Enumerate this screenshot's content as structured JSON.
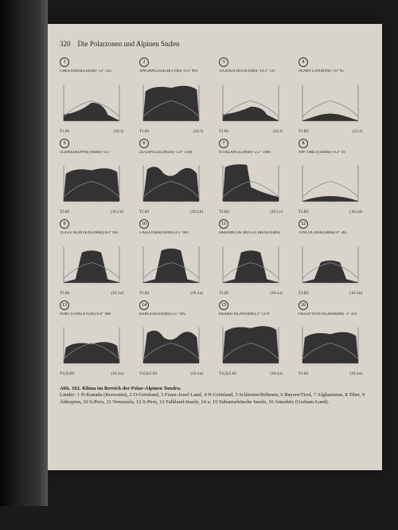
{
  "page": {
    "number": "320",
    "title": "Die Polarzonen und Alpinen Stufen"
  },
  "figure_caption": {
    "label": "Abb. 162.",
    "title": "Klima im Bereich der Polar-Alpinen Tundra.",
    "legend": "Länder: 1 N-Kanada (Keewatin), 2 O-Grönland, 3 Franz-Josef-Land, 4 N-Grönland, 5 Schlesien/Böhmen, 6 Bayern/Tirol, 7 Afghanistan, 8 Tibet, 9 Äthiopien, 10 S-Peru, 11 Venezuela, 12 S-Peru, 13 Falkland-Inseln, 14 u. 15 Subantarktische Inseln, 16 Antarktis (Graham-Land)."
  },
  "colors": {
    "fill_dark": "#333333",
    "hatch": "#555555",
    "line": "#222222",
    "accent": "#888888",
    "bg": "#d8d4cc",
    "axis": "#444444"
  },
  "panels": [
    {
      "n": "1",
      "title": "CHESTERFIELD(6m) -13° 235",
      "sub": "(-26)",
      "tcode": "T1.H1",
      "rcode": "(16.1)",
      "shape": "lowbump",
      "h": 0.45
    },
    {
      "n": "2",
      "title": "ANGMAGSSALIK (19m) -0.3° 903",
      "sub": "",
      "tcode": "T1.H1",
      "rcode": "(16.1)",
      "shape": "broad",
      "h": 0.9
    },
    {
      "n": "3",
      "title": "TICHAJA BUCHT(8m) -10.5° 121",
      "sub": "(-7)",
      "tcode": "T1.H1",
      "rcode": "(16.1)",
      "shape": "lowbump",
      "h": 0.35
    },
    {
      "n": "4",
      "title": "PEARY LAND(9m) -19° 85",
      "sub": "(-1)",
      "tcode": "T1.H2",
      "rcode": "(15.1)",
      "shape": "smallbump",
      "h": 0.25
    },
    {
      "n": "5",
      "title": "SCHNEEKOPPE(1660m) -0.5°",
      "sub": "(-50 -40)",
      "tcode": "T2.H1",
      "rcode": "(16.2.b)",
      "shape": "broad",
      "h": 0.85
    },
    {
      "n": "6",
      "title": "ZUGSPITZE(2962m) -5.0° 1340",
      "sub": "(-50 -46)",
      "tcode": "T2.H1",
      "rcode": "(16.2.b)",
      "shape": "twin",
      "h": 0.9
    },
    {
      "n": "7",
      "title": "N SALANG(3366m) -2.5° 1000",
      "sub": "(-6)",
      "tcode": "T2.H2",
      "rcode": "(16.2.c)",
      "shape": "asymm",
      "h": 0.95
    },
    {
      "n": "8",
      "title": "NW-TIBET(5600m) -0.3° 19",
      "sub": "(-13)",
      "tcode": "T2.H3",
      "rcode": "(16.2.d)",
      "shape": "flat",
      "h": 0.15
    },
    {
      "n": "9",
      "title": "TULLU KONTEN(4200m) 8.0° 963",
      "sub": "(-13)",
      "tcode": "T3.H1",
      "rcode": "(16.3.a)",
      "shape": "central",
      "h": 0.85
    },
    {
      "n": "10",
      "title": "CAILLOMA(3920m) 4.5° 683",
      "sub": "",
      "tcode": "T3.H1",
      "rcode": "(16.3.a)",
      "shape": "central",
      "h": 0.9
    },
    {
      "n": "11",
      "title": "PARAMO DE MUCUCHÍES(4100m)",
      "sub": "(-10)",
      "tcode": "T3.H1",
      "rcode": "(16.3.a)",
      "shape": "central",
      "h": 0.85
    },
    {
      "n": "12",
      "title": "VINCOCAYA(4380m) 0° 385",
      "sub": "(-5)",
      "tcode": "T3.H2",
      "rcode": "(16.3.b)",
      "shape": "central",
      "h": 0.6
    },
    {
      "n": "13",
      "title": "PORT STANLEY(2m) 6.0° 668",
      "sub": "",
      "tcode": "T1(3).H1",
      "rcode": "(16.4.a)",
      "shape": "broad",
      "h": 0.55
    },
    {
      "n": "14",
      "title": "KERGUELEN(6m) 3.5° 995",
      "sub": "(-18)",
      "tcode": "T1(3)/2.H1",
      "rcode": "(16.4.a)",
      "shape": "twin",
      "h": 0.85
    },
    {
      "n": "15",
      "title": "HEARD ISLAND(8m) 1° 1379",
      "sub": "",
      "tcode": "T1(3)/2.H1",
      "rcode": "(16.4.a)",
      "shape": "broad",
      "h": 0.95
    },
    {
      "n": "16",
      "title": "DECEPTION ISLAND(8m) -3° 503",
      "sub": "(-9)",
      "tcode": "T1.H1",
      "rcode": "(16.4.a)",
      "shape": "broad",
      "h": 0.8
    }
  ]
}
